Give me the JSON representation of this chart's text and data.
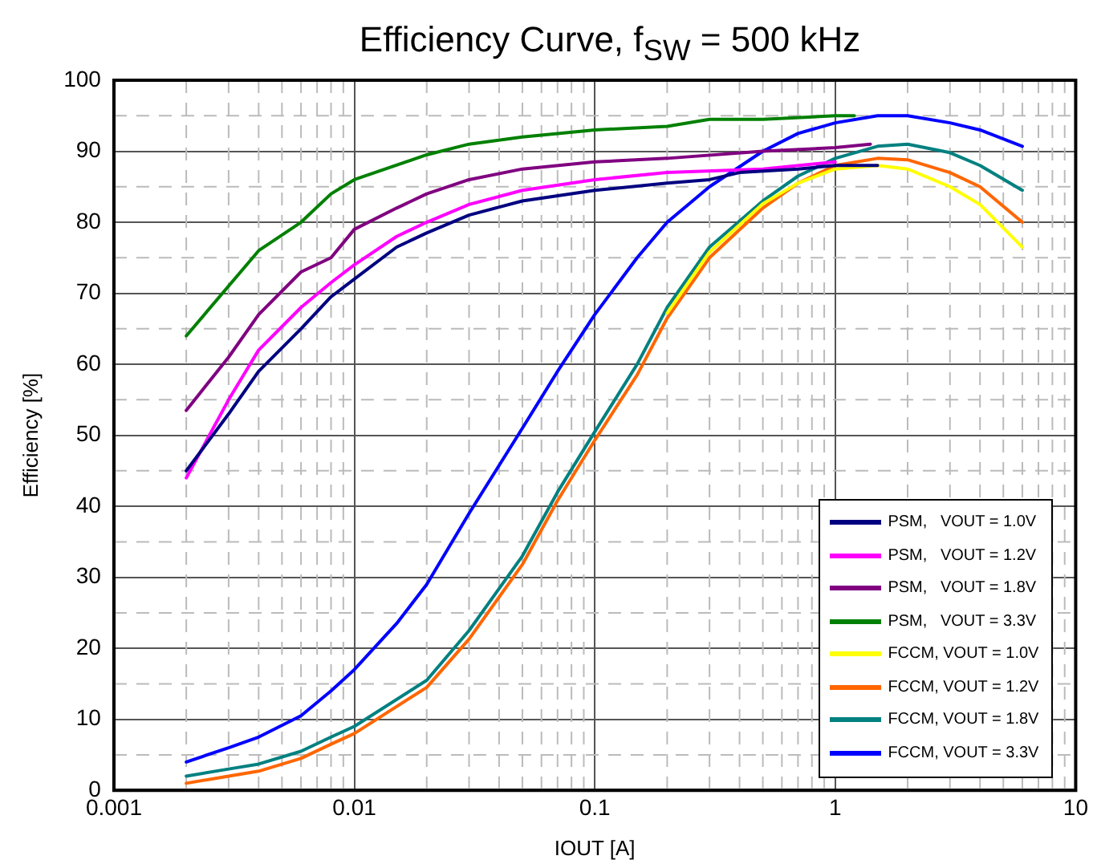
{
  "chart_data": {
    "type": "line",
    "title": "Efficiency Curve, f$_{SW}$ = 500 kHz",
    "xlabel": "IOUT [A]",
    "ylabel": "Efficiency [%]",
    "log": "x",
    "xlim": [
      0.001,
      10
    ],
    "xticks": [
      0.001,
      0.01,
      0.1,
      1,
      10
    ],
    "ylim": [
      0,
      100
    ],
    "yticks": [
      0,
      10,
      20,
      30,
      40,
      50,
      60,
      70,
      80,
      90,
      100
    ],
    "grid": true,
    "legend": "bottom right",
    "marker": "none",
    "line_style": "solid",
    "series": [
      {
        "name": "PSM,   VOUT = 1.0V",
        "color": "#000080",
        "x": [
          0.002,
          0.003,
          0.004,
          0.006,
          0.008,
          0.01,
          0.015,
          0.02,
          0.03,
          0.05,
          0.1,
          0.2,
          0.3,
          0.4,
          0.7,
          1,
          1.5
        ],
        "values": [
          45,
          53,
          59,
          65,
          69.5,
          72,
          76.5,
          78.5,
          81,
          83,
          84.5,
          85.5,
          86,
          87,
          87.5,
          88,
          88
        ]
      },
      {
        "name": "PSM,   VOUT = 1.2V",
        "color": "#ff00ff",
        "x": [
          0.002,
          0.003,
          0.004,
          0.006,
          0.008,
          0.01,
          0.015,
          0.02,
          0.03,
          0.05,
          0.1,
          0.2,
          0.5,
          1
        ],
        "values": [
          44,
          55,
          62,
          68,
          71.5,
          74,
          78,
          80,
          82.5,
          84.5,
          86,
          87,
          87.5,
          88.5
        ]
      },
      {
        "name": "PSM,   VOUT = 1.8V",
        "color": "#800080",
        "x": [
          0.002,
          0.003,
          0.004,
          0.006,
          0.008,
          0.01,
          0.015,
          0.02,
          0.03,
          0.05,
          0.1,
          0.2,
          0.5,
          1,
          1.4
        ],
        "values": [
          53.5,
          61,
          67,
          73,
          75,
          79,
          82,
          84,
          86,
          87.5,
          88.5,
          89,
          90,
          90.5,
          91
        ]
      },
      {
        "name": "PSM,   VOUT = 3.3V",
        "color": "#008000",
        "x": [
          0.002,
          0.004,
          0.006,
          0.008,
          0.01,
          0.02,
          0.03,
          0.05,
          0.1,
          0.2,
          0.3,
          0.5,
          1,
          1.2
        ],
        "values": [
          64,
          76,
          80,
          84,
          86,
          89.5,
          91,
          92,
          93,
          93.5,
          94.5,
          94.5,
          95,
          95
        ]
      },
      {
        "name": "FCCM, VOUT = 1.0V",
        "color": "#ffff00",
        "x": [
          0.2,
          0.3,
          0.5,
          0.7,
          1,
          1.5,
          2,
          3,
          4,
          6
        ],
        "values": [
          67.2,
          75.8,
          82.6,
          85.5,
          87.5,
          88,
          87.5,
          85,
          82.5,
          76.5
        ]
      },
      {
        "name": "FCCM, VOUT = 1.2V",
        "color": "#ff6600",
        "x": [
          0.002,
          0.003,
          0.004,
          0.006,
          0.008,
          0.01,
          0.02,
          0.03,
          0.05,
          0.07,
          0.1,
          0.15,
          0.2,
          0.3,
          0.5,
          0.7,
          1,
          1.5,
          2,
          3,
          4,
          6
        ],
        "values": [
          1,
          2,
          2.7,
          4.5,
          6.5,
          8,
          14.5,
          21.3,
          31.8,
          40.8,
          49.3,
          58.5,
          66.5,
          75,
          82,
          85.5,
          88,
          89,
          88.8,
          87,
          85,
          80
        ]
      },
      {
        "name": "FCCM, VOUT = 1.8V",
        "color": "#008080",
        "x": [
          0.002,
          0.003,
          0.004,
          0.006,
          0.008,
          0.01,
          0.02,
          0.03,
          0.05,
          0.07,
          0.1,
          0.15,
          0.2,
          0.3,
          0.5,
          0.7,
          1,
          1.5,
          2,
          3,
          4,
          6
        ],
        "values": [
          2,
          3,
          3.7,
          5.5,
          7.5,
          9,
          15.5,
          22.5,
          33,
          42,
          50.5,
          60,
          68,
          76.5,
          83,
          86.5,
          89,
          90.7,
          91,
          89.8,
          88,
          84.5
        ]
      },
      {
        "name": "FCCM, VOUT = 3.3V",
        "color": "#0000ff",
        "x": [
          0.002,
          0.003,
          0.004,
          0.006,
          0.008,
          0.01,
          0.015,
          0.02,
          0.03,
          0.05,
          0.07,
          0.1,
          0.15,
          0.2,
          0.3,
          0.5,
          0.7,
          1,
          1.5,
          2,
          3,
          4,
          6
        ],
        "values": [
          4,
          6,
          7.5,
          10.5,
          14,
          17,
          23.5,
          29,
          39,
          51,
          59,
          67,
          75,
          80,
          85,
          90,
          92.5,
          94,
          95,
          95,
          94,
          93,
          90.7
        ]
      }
    ]
  }
}
